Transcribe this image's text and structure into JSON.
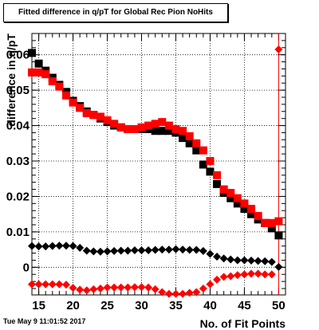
{
  "chart_data": {
    "type": "scatter",
    "title": "Fitted difference in q/pT for Global Rec Pion NoHits",
    "xlabel": "No. of Fit Points",
    "ylabel": "difference in q/pT",
    "xlim": [
      14,
      51
    ],
    "ylim": [
      -0.0078,
      0.066
    ],
    "x_ticks": [
      "15",
      "20",
      "25",
      "30",
      "35",
      "40",
      "45",
      "50"
    ],
    "y_ticks": [
      "0",
      "0.01",
      "0.02",
      "0.03",
      "0.04",
      "0.05",
      "0.06"
    ],
    "grid": true,
    "x": [
      14,
      15,
      16,
      17,
      18,
      19,
      20,
      21,
      22,
      23,
      24,
      25,
      26,
      27,
      28,
      29,
      30,
      31,
      32,
      33,
      34,
      35,
      36,
      37,
      38,
      39,
      40,
      41,
      42,
      43,
      44,
      45,
      46,
      47,
      48,
      49,
      50
    ],
    "series": [
      {
        "marker": "square",
        "color": "#000000",
        "values": [
          0.0605,
          0.0575,
          0.0555,
          0.0535,
          0.0515,
          0.0495,
          0.047,
          0.0455,
          0.044,
          0.043,
          0.042,
          0.041,
          0.04,
          0.0395,
          0.039,
          0.039,
          0.039,
          0.039,
          0.0385,
          0.0385,
          0.0385,
          0.038,
          0.0365,
          0.035,
          0.033,
          0.029,
          0.027,
          0.0235,
          0.021,
          0.0195,
          0.018,
          0.0165,
          0.015,
          0.0135,
          0.0125,
          0.011,
          0.009
        ]
      },
      {
        "marker": "square",
        "color": "#ff0000",
        "values": [
          0.055,
          0.055,
          0.0545,
          0.0525,
          0.051,
          0.0485,
          0.0465,
          0.045,
          0.0435,
          0.043,
          0.0425,
          0.0415,
          0.0405,
          0.0395,
          0.039,
          0.039,
          0.0395,
          0.04,
          0.0405,
          0.041,
          0.04,
          0.039,
          0.0385,
          0.037,
          0.035,
          0.033,
          0.03,
          0.026,
          0.022,
          0.021,
          0.0195,
          0.018,
          0.0165,
          0.0145,
          0.0125,
          0.0125,
          0.013
        ]
      },
      {
        "marker": "diamond",
        "color": "#000000",
        "values": [
          0.006,
          0.0059,
          0.0059,
          0.006,
          0.0061,
          0.0061,
          0.006,
          0.0055,
          0.0047,
          0.0045,
          0.0044,
          0.0045,
          0.0046,
          0.0047,
          0.0047,
          0.0048,
          0.0048,
          0.0048,
          0.0049,
          0.005,
          0.005,
          0.0051,
          0.005,
          0.0049,
          0.0049,
          0.0046,
          0.0038,
          0.003,
          0.0025,
          0.0022,
          0.002,
          0.002,
          0.0019,
          0.0018,
          0.0017,
          0.0015,
          0.0001
        ]
      },
      {
        "marker": "diamond",
        "color": "#ff0000",
        "values": [
          -0.0048,
          -0.0048,
          -0.0048,
          -0.0048,
          -0.0048,
          -0.0049,
          -0.0058,
          -0.0063,
          -0.0065,
          -0.0062,
          -0.006,
          -0.0057,
          -0.0057,
          -0.0057,
          -0.0057,
          -0.0056,
          -0.0056,
          -0.0057,
          -0.0062,
          -0.007,
          -0.0075,
          -0.0075,
          -0.0075,
          -0.0072,
          -0.007,
          -0.006,
          -0.0048,
          -0.0035,
          -0.0027,
          -0.0025,
          -0.0022,
          -0.002,
          -0.0018,
          -0.0018,
          -0.002,
          -0.002,
          0.0615
        ]
      }
    ]
  },
  "footer": {
    "timestamp": "Tue May  9 11:01:52 2017"
  }
}
